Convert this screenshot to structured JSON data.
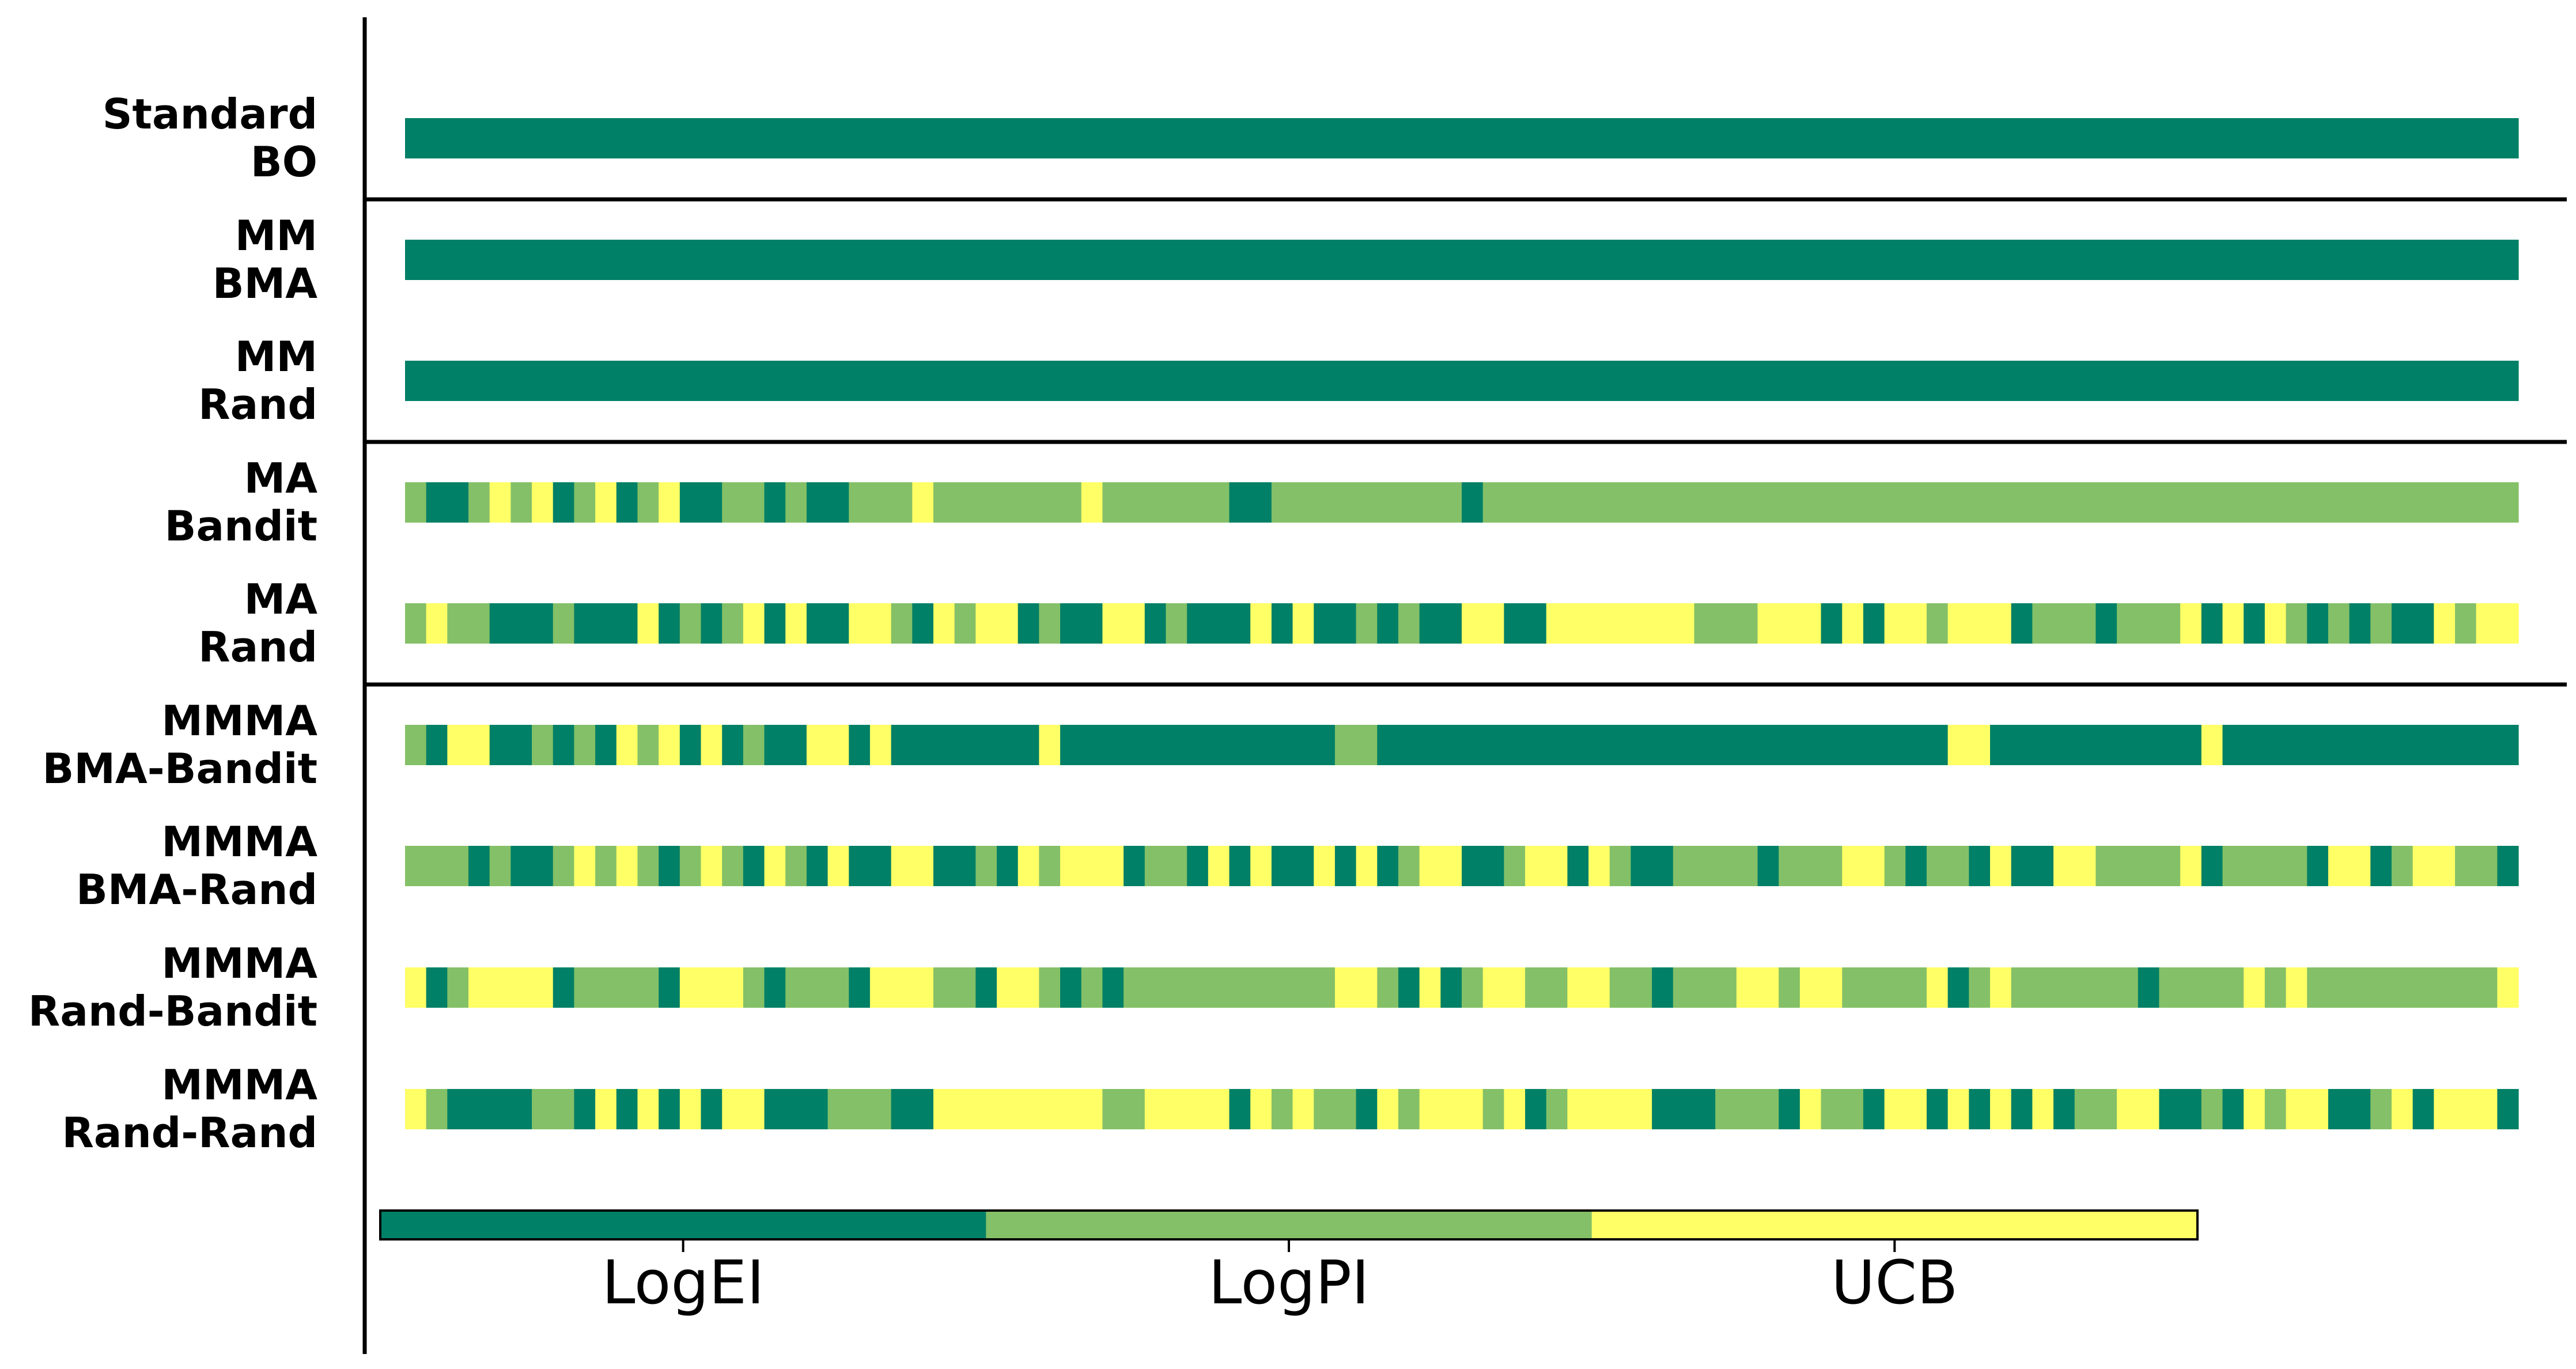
{
  "chart_data": {
    "type": "heatmap",
    "title": "",
    "xlabel": "",
    "ylabel": "",
    "grid": false,
    "legend_placement": "bottom",
    "n_iterations": 100,
    "categories": [
      "LogEI",
      "LogPI",
      "UCB"
    ],
    "colors": {
      "LogEI": "#008066",
      "LogPI": "#84c067",
      "UCB": "#ffff66"
    },
    "groups": [
      [
        "Standard BO"
      ],
      [
        "MM BMA",
        "MM Rand"
      ],
      [
        "MA Bandit",
        "MA Rand"
      ],
      [
        "MMMA BMA-Bandit",
        "MMMA BMA-Rand",
        "MMMA Rand-Bandit",
        "MMMA Rand-Rand"
      ]
    ],
    "rows": [
      {
        "label_line1": "Standard",
        "label_line2": "BO",
        "sequence": "0000000000000000000000000000000000000000000000000000000000000000000000000000000000000000000000000000"
      },
      {
        "label_line1": "MM",
        "label_line2": "BMA",
        "sequence": "0000000000000000000000000000000000000000000000000000000000000000000000000000000000000000000000000000"
      },
      {
        "label_line1": "MM",
        "label_line2": "Rand",
        "sequence": "0000000000000000000000000000000000000000000000000000000000000000000000000000000000000000000000000000"
      },
      {
        "label_line1": "MA",
        "label_line2": "Bandit",
        "sequence": "1001212012012001101001112111111121111110011111111101111111111111111111111111111111111111111111111111"
      },
      {
        "label_line1": "MA",
        "label_line2": "Rand",
        "sequence": "1211000100020101202002210212201002201000202001010022002222222111222020221222011101112020210101002122"
      },
      {
        "label_line1": "MMMA",
        "label_line2": "BMA-Bandit",
        "sequence": "1022001010212020100220200000002000000000000011000000000000000000000000000220000000000200000000000000"
      },
      {
        "label_line1": "MMMA",
        "label_line2": "BMA-Rand",
        "sequence": "1110100121210121021020022001021222011020200202012200122021001111011122101102002211112011110220122110"
      },
      {
        "label_line1": "MMMA",
        "label_line2": "Rand-Bandit",
        "sequence": "2012222011110222101110222110221010111111111122102012211221101112212211112012111111011112121111111112"
      },
      {
        "label_line1": "MMMA",
        "label_line2": "Rand-Rand",
        "sequence": "2100001102020202200011100222222221122220212110212221201222200011102110220202020112200102122001202220"
      }
    ]
  }
}
